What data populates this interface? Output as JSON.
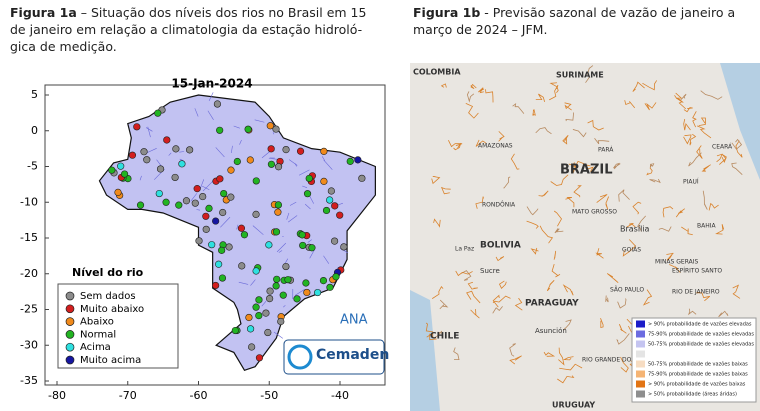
{
  "left": {
    "caption_label": "Figura 1a",
    "caption_text": "– Situação dos níveis dos rios no Brasil em 15 de janeiro em relação a climatologia da estação hidroló-gica de medição.",
    "map_title": "15-Jan-2024",
    "yticks": [
      5,
      0,
      -5,
      -10,
      -15,
      -20,
      -25,
      -30,
      -35
    ],
    "xticks": [
      -80,
      -70,
      -60,
      -50,
      -40
    ],
    "legend": {
      "title": "Nível do rio",
      "items": [
        {
          "label": "Sem dados",
          "color": "#8c8c8c"
        },
        {
          "label": "Muito abaixo",
          "color": "#d21e1e"
        },
        {
          "label": "Abaixo",
          "color": "#f08a1c"
        },
        {
          "label": "Normal",
          "color": "#22b422"
        },
        {
          "label": "Acima",
          "color": "#2ee0e0"
        },
        {
          "label": "Muito acima",
          "color": "#1515a0"
        }
      ]
    },
    "logos": [
      "ANA",
      "Cemaden"
    ]
  },
  "right": {
    "caption_label": "Figura 1b",
    "caption_text": "- Previsão sazonal de vazão de janeiro a março de 2024 – JFM.",
    "places": [
      "COLOMBIA",
      "SURINAME",
      "BRAZIL",
      "BOLIVIA",
      "PARAGUAY",
      "CHILE",
      "URUGUAY",
      "AMAZONAS",
      "PARÁ",
      "CEARÁ",
      "PIAUÍ",
      "RONDÔNIA",
      "MATO GROSSO",
      "Brasília",
      "GOIÁS",
      "BAHIA",
      "La Paz",
      "Sucre",
      "MINAS GERAIS",
      "ESPÍRITO SANTO",
      "SÃO PAULO",
      "RIO DE JANEIRO",
      "Asunción",
      "RIO GRANDE DO SUL"
    ],
    "legend": [
      {
        "label": "> 90% probabilidade de vazões elevadas",
        "color": "#1c1cc8"
      },
      {
        "label": "75-90% probabilidade de vazões elevadas",
        "color": "#6c6ce0"
      },
      {
        "label": "50-75% probabilidade de vazões elevadas",
        "color": "#c4c4f0"
      },
      {
        "label": "50-75% probabilidade de vazões baixas",
        "color": "#f6dcc2"
      },
      {
        "label": "75-90% probabilidade de vazões baixas",
        "color": "#f5b474"
      },
      {
        "label": "> 90% probabilidade de vazões baixas",
        "color": "#e27414"
      },
      {
        "label": "> 50% probabilidade (áreas áridas)",
        "color": "#8e8e8e"
      }
    ]
  }
}
